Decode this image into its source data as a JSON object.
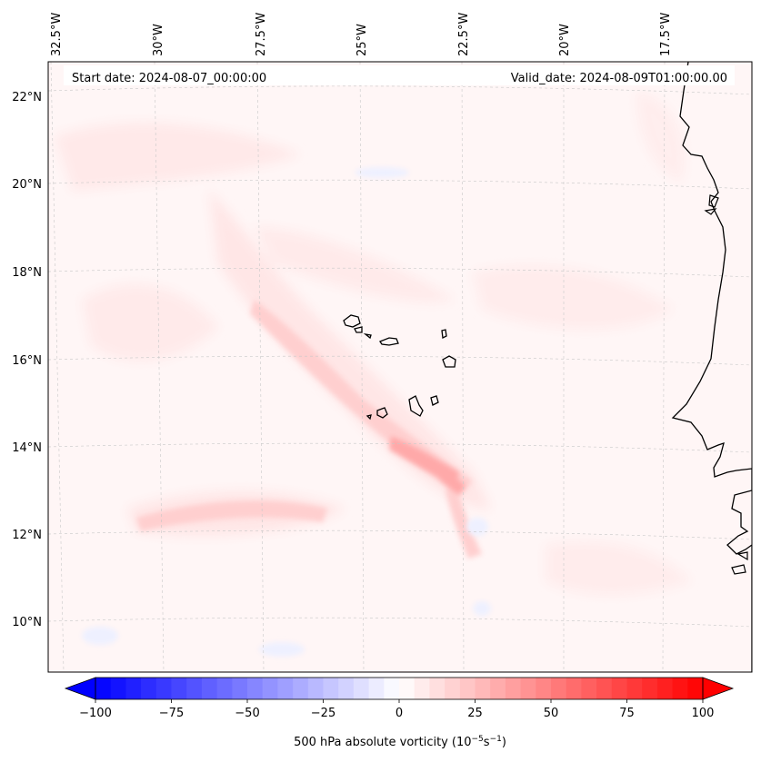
{
  "map": {
    "title_left": "Start date: 2024-08-07_00:00:00",
    "title_right": "Valid_date: 2024-08-09T01:00:00.00",
    "variable": "500 hPa absolute vorticity",
    "units_base": "(10",
    "units_exp1": "−5",
    "units_mid": "s",
    "units_exp2": "−1",
    "units_end": ")",
    "region": "Eastern tropical Atlantic, Cape Verde Islands and West African coast",
    "lon_labels": [
      "32.5°W",
      "30°W",
      "27.5°W",
      "25°W",
      "22.5°W",
      "20°W",
      "17.5°W"
    ],
    "lat_labels": [
      "22°N",
      "20°N",
      "18°N",
      "16°N",
      "14°N",
      "12°N",
      "10°N"
    ],
    "colors": {
      "frame": "#000000",
      "gridline": "#bdbdbd",
      "coast": "#000000",
      "field_bg": "#fff6f6",
      "weak_pos": "#ffe4e4",
      "mid_pos": "#ffc8c8",
      "strong_pos": "#ff9c9c",
      "weak_neg": "#eef0ff"
    }
  },
  "colorbar": {
    "ticks": [
      "−100",
      "−75",
      "−50",
      "−25",
      "0",
      "25",
      "50",
      "75",
      "100"
    ],
    "min": -100,
    "max": 100,
    "colormap": "bwr",
    "low_color": "#0000ff",
    "mid_color": "#ffffff",
    "high_color": "#ff0000"
  }
}
